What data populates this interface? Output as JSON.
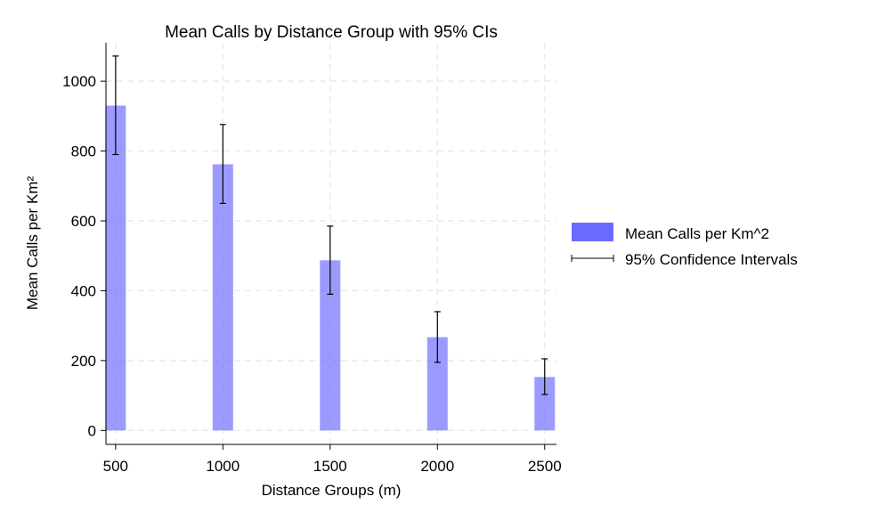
{
  "chart_data": {
    "type": "bar",
    "title": "Mean Calls by Distance Group with 95% CIs",
    "xlabel": "Distance Groups (m)",
    "ylabel": "Mean Calls per Km²",
    "x": [
      500,
      1000,
      1500,
      2000,
      2500
    ],
    "xticks": [
      "500",
      "1000",
      "1500",
      "2000",
      "2500"
    ],
    "xlim": [
      455,
      2555
    ],
    "yticks": [
      "0",
      "200",
      "400",
      "600",
      "800",
      "1000"
    ],
    "ylim": [
      -40,
      1110
    ],
    "grid": true,
    "legend_position": "right",
    "series": [
      {
        "name": "Mean Calls per Km^2",
        "type": "bar",
        "color": "#6b6bff",
        "values": [
          930,
          762,
          487,
          267,
          153
        ]
      },
      {
        "name": "95% Confidence Intervals",
        "type": "errorbar",
        "color": "#000000",
        "lower": [
          790,
          650,
          390,
          195,
          103
        ],
        "upper": [
          1072,
          876,
          585,
          340,
          205
        ]
      }
    ]
  }
}
